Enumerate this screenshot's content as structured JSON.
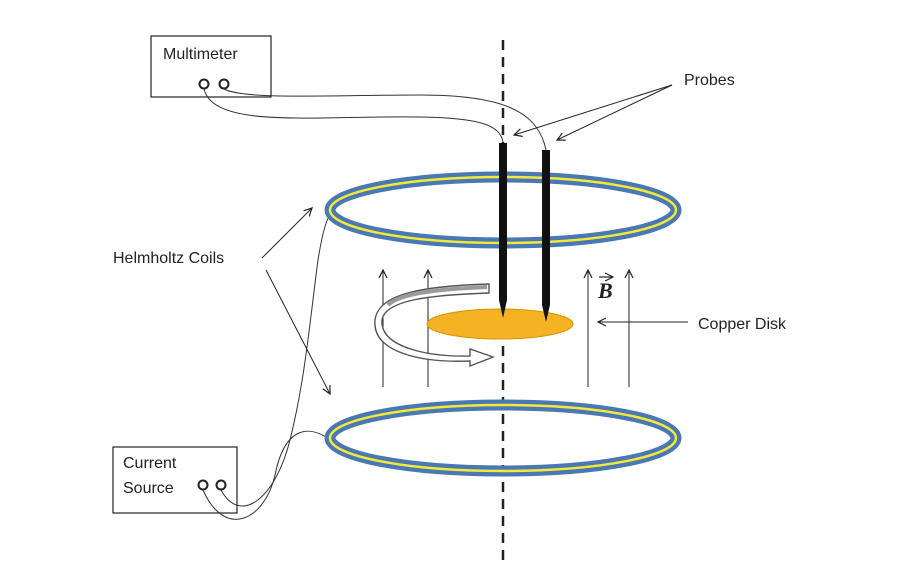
{
  "labels": {
    "multimeter": "Multimeter",
    "probes": "Probes",
    "helmholtz_coils": "Helmholtz Coils",
    "copper_disk": "Copper Disk",
    "current_source_line1": "Current",
    "current_source_line2": "Source",
    "field_symbol": "B"
  },
  "colors": {
    "coil_outer": "#4a78b5",
    "coil_stripe": "#f3ea37",
    "disk": "#f5b222",
    "probe": "#111111",
    "line": "#222222"
  }
}
